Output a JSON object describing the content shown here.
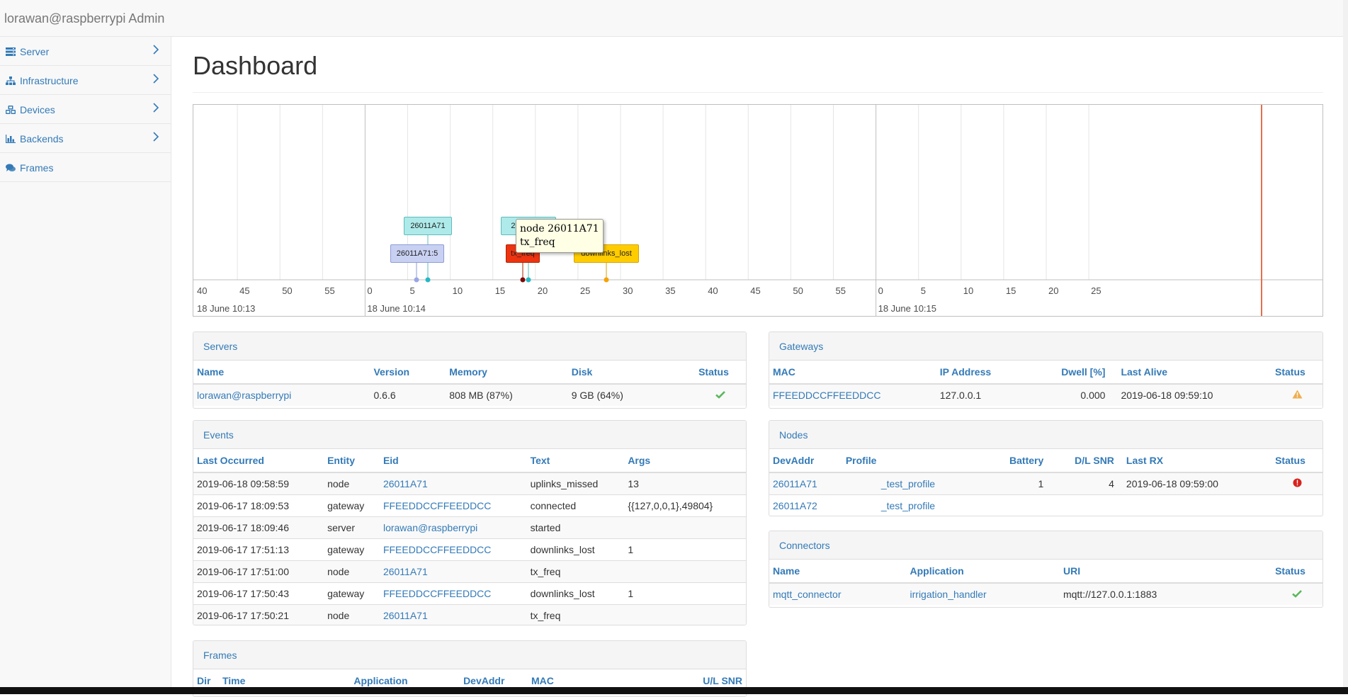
{
  "app": {
    "title": "lorawan@raspberrypi Admin"
  },
  "sidebar": {
    "items": [
      {
        "label": "Server",
        "icon": "server-icon",
        "has_submenu": true
      },
      {
        "label": "Infrastructure",
        "icon": "sitemap-icon",
        "has_submenu": true
      },
      {
        "label": "Devices",
        "icon": "cubes-icon",
        "has_submenu": true
      },
      {
        "label": "Backends",
        "icon": "bar-chart-icon",
        "has_submenu": true
      },
      {
        "label": "Frames",
        "icon": "comments-icon",
        "has_submenu": false
      }
    ]
  },
  "page": {
    "title": "Dashboard"
  },
  "timeline": {
    "ticks_1": [
      "40",
      "45",
      "50",
      "55",
      "0",
      "5",
      "10",
      "15",
      "20",
      "25",
      "30",
      "35",
      "40",
      "45",
      "50",
      "55",
      "0",
      "5",
      "10",
      "15",
      "20",
      "25"
    ],
    "major_labels": [
      "18 June 10:13",
      "18 June 10:14",
      "18 June 10:15"
    ],
    "events": [
      {
        "label": "26011A71",
        "color": "#aeeaea",
        "border": "#5fbcbc",
        "dot": "#26b8c4"
      },
      {
        "label": "26011A71:5",
        "color": "#c9d1f3",
        "border": "#8c9ad6",
        "dot": "#99a6e6"
      },
      {
        "label": "26011A71",
        "color": "#aeeaea",
        "border": "#5fbcbc",
        "dot": "#26b8c4"
      },
      {
        "label": "tx_freq",
        "color": "#ee3311",
        "border": "#aa2200",
        "dot": "#7a0a0a"
      },
      {
        "label": "downlinks_lost",
        "color": "#ffcc00",
        "border": "#d4a300",
        "dot": "#f5a300"
      }
    ],
    "tooltip": {
      "line1": "node 26011A71",
      "line2": "tx_freq"
    },
    "now_marker_color": "#e0704f"
  },
  "servers": {
    "heading": "Servers",
    "columns": [
      "Name",
      "Version",
      "Memory",
      "Disk",
      "Status"
    ],
    "rows": [
      {
        "name": "lorawan@raspberrypi",
        "version": "0.6.6",
        "memory": "808 MB (87%)",
        "disk": "9 GB (64%)",
        "status": "ok"
      }
    ]
  },
  "gateways": {
    "heading": "Gateways",
    "columns": [
      "MAC",
      "IP Address",
      "Dwell [%]",
      "Last Alive",
      "Status"
    ],
    "rows": [
      {
        "mac": "FFEEDDCCFFEEDDCC",
        "ip": "127.0.0.1",
        "dwell": "0.000",
        "last_alive": "2019-06-18 09:59:10",
        "status": "warning"
      }
    ]
  },
  "events": {
    "heading": "Events",
    "columns": [
      "Last Occurred",
      "Entity",
      "Eid",
      "Text",
      "Args"
    ],
    "rows": [
      {
        "when": "2019-06-18 09:58:59",
        "entity": "node",
        "eid": "26011A71",
        "text": "uplinks_missed",
        "args": "13"
      },
      {
        "when": "2019-06-17 18:09:53",
        "entity": "gateway",
        "eid": "FFEEDDCCFFEEDDCC",
        "text": "connected",
        "args": "{{127,0,0,1},49804}"
      },
      {
        "when": "2019-06-17 18:09:46",
        "entity": "server",
        "eid": "lorawan@raspberrypi",
        "text": "started",
        "args": ""
      },
      {
        "when": "2019-06-17 17:51:13",
        "entity": "gateway",
        "eid": "FFEEDDCCFFEEDDCC",
        "text": "downlinks_lost",
        "args": "1"
      },
      {
        "when": "2019-06-17 17:51:00",
        "entity": "node",
        "eid": "26011A71",
        "text": "tx_freq",
        "args": ""
      },
      {
        "when": "2019-06-17 17:50:43",
        "entity": "gateway",
        "eid": "FFEEDDCCFFEEDDCC",
        "text": "downlinks_lost",
        "args": "1"
      },
      {
        "when": "2019-06-17 17:50:21",
        "entity": "node",
        "eid": "26011A71",
        "text": "tx_freq",
        "args": ""
      }
    ]
  },
  "nodes": {
    "heading": "Nodes",
    "columns": [
      "DevAddr",
      "Profile",
      "Battery",
      "D/L SNR",
      "Last RX",
      "Status"
    ],
    "rows": [
      {
        "devaddr": "26011A71",
        "profile": "_test_profile",
        "battery": "1",
        "snr": "4",
        "last_rx": "2019-06-18 09:59:00",
        "status": "error"
      },
      {
        "devaddr": "26011A72",
        "profile": "_test_profile",
        "battery": "",
        "snr": "",
        "last_rx": "",
        "status": ""
      }
    ]
  },
  "connectors": {
    "heading": "Connectors",
    "columns": [
      "Name",
      "Application",
      "URI",
      "Status"
    ],
    "rows": [
      {
        "name": "mqtt_connector",
        "application": "irrigation_handler",
        "uri": "mqtt://127.0.0.1:1883",
        "status": "ok"
      }
    ]
  },
  "frames": {
    "heading": "Frames",
    "columns": [
      "Dir",
      "Time",
      "Application",
      "DevAddr",
      "MAC",
      "U/L SNR"
    ]
  },
  "colors": {
    "link": "#337ab7",
    "ok": "#5cb85c",
    "warning": "#f0ad4e",
    "error": "#d9221c"
  }
}
